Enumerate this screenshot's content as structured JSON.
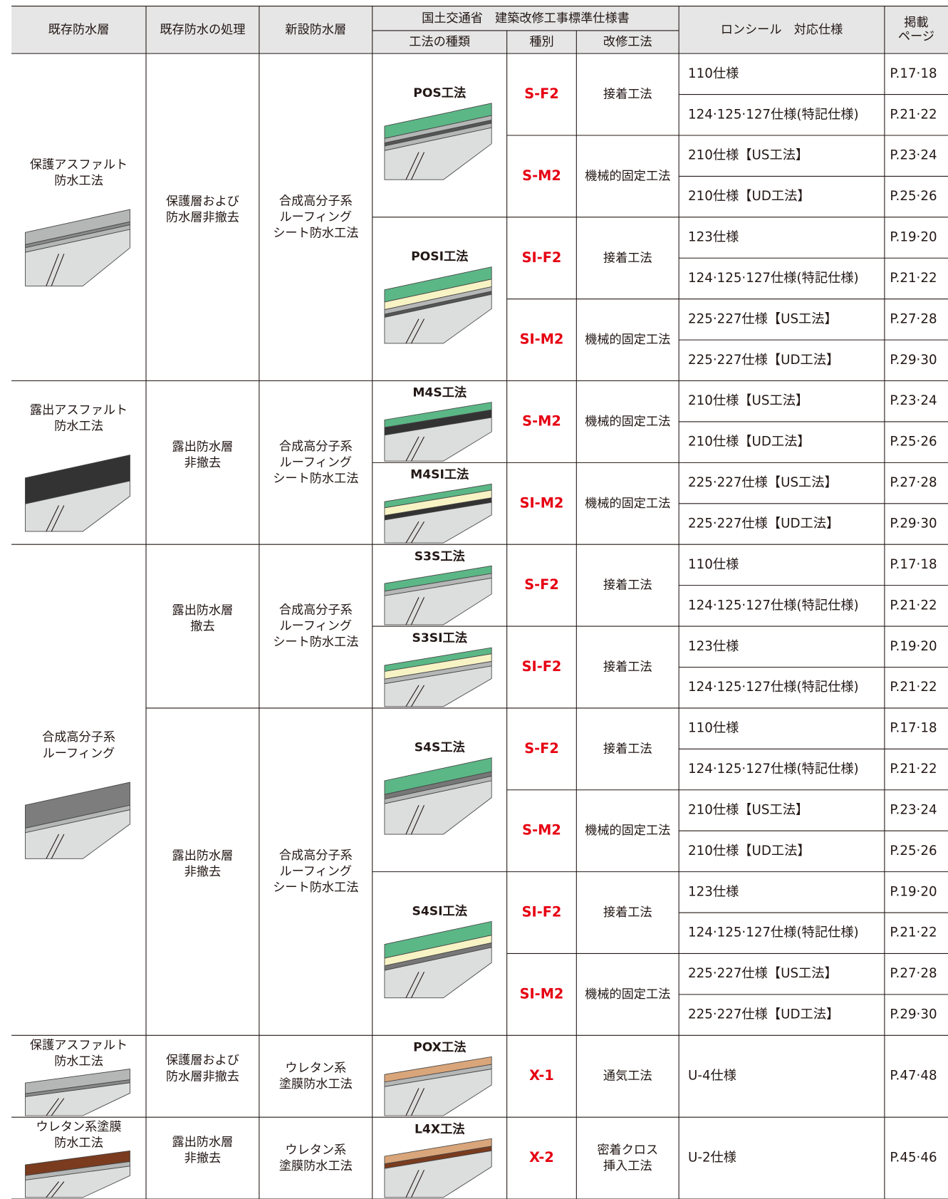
{
  "header": {
    "existing": "既存防水層",
    "treatment": "既存防水の処理",
    "new_layer": "新設防水層",
    "standard": "国土交通省　建築改修工事標準仕様書",
    "method_kind": "工法の種類",
    "type": "種別",
    "repair_method": "改修工法",
    "ronseal": "ロンシール　対応仕様",
    "page": [
      "掲載",
      "ページ"
    ]
  },
  "groups": [
    {
      "existing": [
        "保護アスファルト",
        "防水工法"
      ],
      "subgroups": [
        {
          "treatment": [
            "保護層および",
            "防水層非撤去"
          ],
          "new_layer": [
            "合成高分子系",
            "ルーフィング",
            "シート防水工法"
          ],
          "methods": [
            {
              "name": "POS工法",
              "types": [
                {
                  "code": "S-F2",
                  "method": [
                    "接着工法"
                  ],
                  "specs": [
                    {
                      "spec": "110仕様",
                      "page": "P.17·18"
                    },
                    {
                      "spec": "124·125·127仕様(特記仕様)",
                      "page": "P.21·22"
                    }
                  ]
                },
                {
                  "code": "S-M2",
                  "method": [
                    "機械的固定工法"
                  ],
                  "specs": [
                    {
                      "spec": "210仕様【US工法】",
                      "page": "P.23·24"
                    },
                    {
                      "spec": "210仕様【UD工法】",
                      "page": "P.25·26"
                    }
                  ]
                }
              ]
            },
            {
              "name": "POSI工法",
              "types": [
                {
                  "code": "SI-F2",
                  "method": [
                    "接着工法"
                  ],
                  "specs": [
                    {
                      "spec": "123仕様",
                      "page": "P.19·20"
                    },
                    {
                      "spec": "124·125·127仕様(特記仕様)",
                      "page": "P.21·22"
                    }
                  ]
                },
                {
                  "code": "SI-M2",
                  "method": [
                    "機械的固定工法"
                  ],
                  "specs": [
                    {
                      "spec": "225·227仕様【US工法】",
                      "page": "P.27·28"
                    },
                    {
                      "spec": "225·227仕様【UD工法】",
                      "page": "P.29·30"
                    }
                  ]
                }
              ]
            }
          ]
        }
      ]
    },
    {
      "existing": [
        "露出アスファルト",
        "防水工法"
      ],
      "subgroups": [
        {
          "treatment": [
            "露出防水層",
            "非撤去"
          ],
          "new_layer": [
            "合成高分子系",
            "ルーフィング",
            "シート防水工法"
          ],
          "methods": [
            {
              "name": "M4S工法",
              "types": [
                {
                  "code": "S-M2",
                  "method": [
                    "機械的固定工法"
                  ],
                  "specs": [
                    {
                      "spec": "210仕様【US工法】",
                      "page": "P.23·24"
                    },
                    {
                      "spec": "210仕様【UD工法】",
                      "page": "P.25·26"
                    }
                  ]
                }
              ]
            },
            {
              "name": "M4SI工法",
              "types": [
                {
                  "code": "SI-M2",
                  "method": [
                    "機械的固定工法"
                  ],
                  "specs": [
                    {
                      "spec": "225·227仕様【US工法】",
                      "page": "P.27·28"
                    },
                    {
                      "spec": "225·227仕様【UD工法】",
                      "page": "P.29·30"
                    }
                  ]
                }
              ]
            }
          ]
        }
      ]
    },
    {
      "existing": [
        "合成高分子系",
        "ルーフィング"
      ],
      "subgroups": [
        {
          "treatment": [
            "露出防水層",
            "撤去"
          ],
          "new_layer": [
            "合成高分子系",
            "ルーフィング",
            "シート防水工法"
          ],
          "methods": [
            {
              "name": "S3S工法",
              "types": [
                {
                  "code": "S-F2",
                  "method": [
                    "接着工法"
                  ],
                  "specs": [
                    {
                      "spec": "110仕様",
                      "page": "P.17·18"
                    },
                    {
                      "spec": "124·125·127仕様(特記仕様)",
                      "page": "P.21·22"
                    }
                  ]
                }
              ]
            },
            {
              "name": "S3SI工法",
              "types": [
                {
                  "code": "SI-F2",
                  "method": [
                    "接着工法"
                  ],
                  "specs": [
                    {
                      "spec": "123仕様",
                      "page": "P.19·20"
                    },
                    {
                      "spec": "124·125·127仕様(特記仕様)",
                      "page": "P.21·22"
                    }
                  ]
                }
              ]
            }
          ]
        },
        {
          "treatment": [
            "露出防水層",
            "非撤去"
          ],
          "new_layer": [
            "合成高分子系",
            "ルーフィング",
            "シート防水工法"
          ],
          "methods": [
            {
              "name": "S4S工法",
              "types": [
                {
                  "code": "S-F2",
                  "method": [
                    "接着工法"
                  ],
                  "specs": [
                    {
                      "spec": "110仕様",
                      "page": "P.17·18"
                    },
                    {
                      "spec": "124·125·127仕様(特記仕様)",
                      "page": "P.21·22"
                    }
                  ]
                },
                {
                  "code": "S-M2",
                  "method": [
                    "機械的固定工法"
                  ],
                  "specs": [
                    {
                      "spec": "210仕様【US工法】",
                      "page": "P.23·24"
                    },
                    {
                      "spec": "210仕様【UD工法】",
                      "page": "P.25·26"
                    }
                  ]
                }
              ]
            },
            {
              "name": "S4SI工法",
              "types": [
                {
                  "code": "SI-F2",
                  "method": [
                    "接着工法"
                  ],
                  "specs": [
                    {
                      "spec": "123仕様",
                      "page": "P.19·20"
                    },
                    {
                      "spec": "124·125·127仕様(特記仕様)",
                      "page": "P.21·22"
                    }
                  ]
                },
                {
                  "code": "SI-M2",
                  "method": [
                    "機械的固定工法"
                  ],
                  "specs": [
                    {
                      "spec": "225·227仕様【US工法】",
                      "page": "P.27·28"
                    },
                    {
                      "spec": "225·227仕様【UD工法】",
                      "page": "P.29·30"
                    }
                  ]
                }
              ]
            }
          ]
        }
      ]
    },
    {
      "existing": [
        "保護アスファルト",
        "防水工法"
      ],
      "subgroups": [
        {
          "treatment": [
            "保護層および",
            "防水層非撤去"
          ],
          "new_layer": [
            "ウレタン系",
            "塗膜防水工法"
          ],
          "methods": [
            {
              "name": "POX工法",
              "types": [
                {
                  "code": "X-1",
                  "method": [
                    "通気工法"
                  ],
                  "specs": [
                    {
                      "spec": "U-4仕様",
                      "page": "P.47·48"
                    }
                  ]
                }
              ]
            }
          ]
        }
      ]
    },
    {
      "existing": [
        "ウレタン系塗膜",
        "防水工法"
      ],
      "subgroups": [
        {
          "treatment": [
            "露出防水層",
            "非撤去"
          ],
          "new_layer": [
            "ウレタン系",
            "塗膜防水工法"
          ],
          "methods": [
            {
              "name": "L4X工法",
              "types": [
                {
                  "code": "X-2",
                  "method": [
                    "密着クロス",
                    "挿入工法"
                  ],
                  "specs": [
                    {
                      "spec": "U-2仕様",
                      "page": "P.45·46"
                    }
                  ]
                }
              ]
            }
          ]
        }
      ]
    }
  ]
}
